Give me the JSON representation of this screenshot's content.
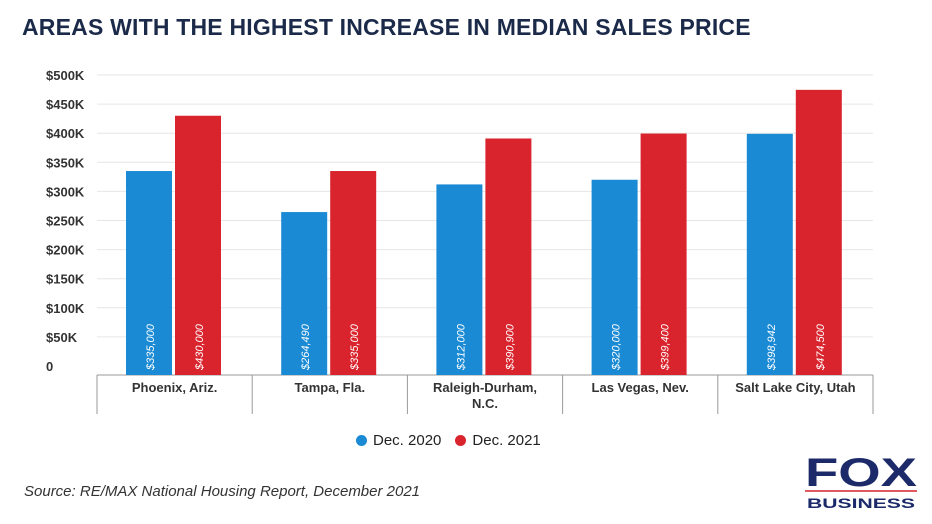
{
  "chart_data": {
    "type": "bar",
    "title": "AREAS WITH THE HIGHEST INCREASE IN MEDIAN SALES PRICE",
    "categories": [
      [
        "Phoenix, Ariz."
      ],
      [
        "Tampa, Fla."
      ],
      [
        "Raleigh-Durham,",
        "N.C."
      ],
      [
        "Las Vegas, Nev."
      ],
      [
        "Salt Lake City, Utah"
      ]
    ],
    "series": [
      {
        "name": "Dec. 2020",
        "color": "#1a8ad4",
        "values": [
          335000,
          264490,
          312000,
          320000,
          398942
        ],
        "labels": [
          "$335,000",
          "$264,490",
          "$312,000",
          "$320,000",
          "$398,942"
        ]
      },
      {
        "name": "Dec. 2021",
        "color": "#d9232d",
        "values": [
          430000,
          335000,
          390900,
          399400,
          474500
        ],
        "labels": [
          "$430,000",
          "$335,000",
          "$390,900",
          "$399,400",
          "$474,500"
        ]
      }
    ],
    "ylim": [
      0,
      500000
    ],
    "yticks": [
      "0",
      "$50K",
      "$100K",
      "$150K",
      "$200K",
      "$250K",
      "$300K",
      "$350K",
      "$400K",
      "$450K",
      "$500K"
    ],
    "grid": true,
    "legend": "bottom"
  },
  "source": "Source: RE/MAX National Housing Report, December 2021",
  "logo": {
    "text": "FOX",
    "sub": "BUSINESS",
    "color": "#1c2a6a"
  }
}
